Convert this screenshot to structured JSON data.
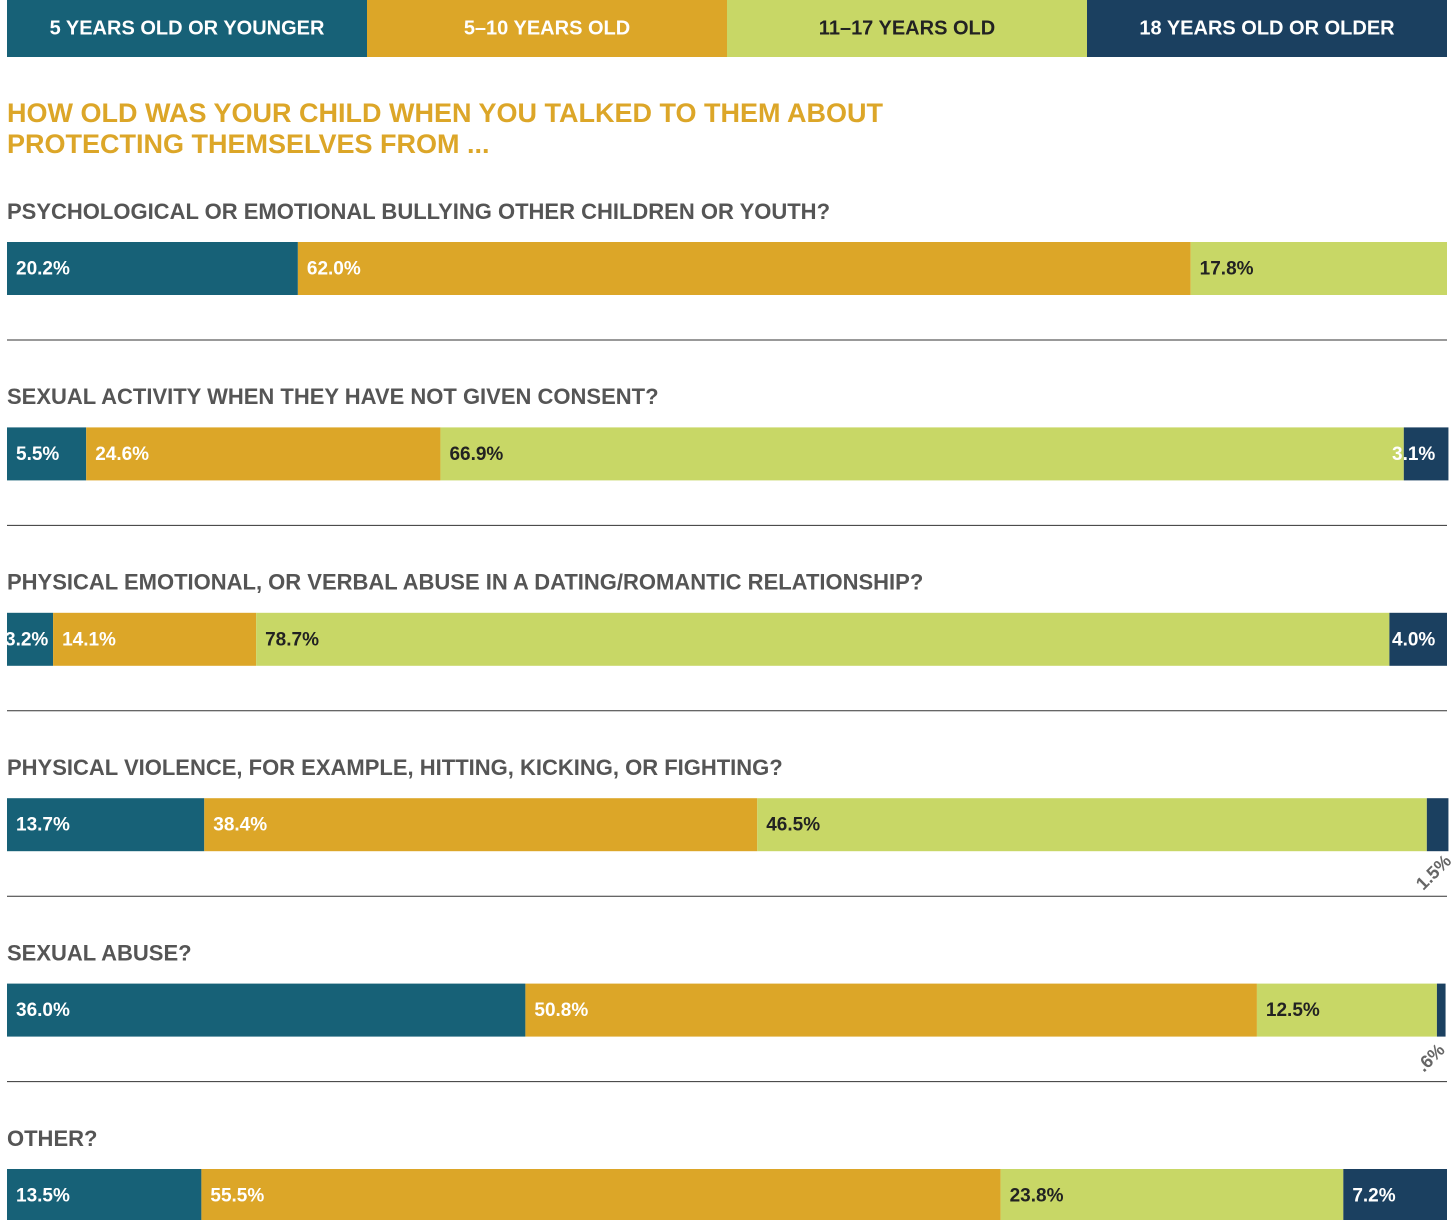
{
  "chart_data": {
    "type": "stacked-bar",
    "title": [
      "HOW OLD WAS YOUR CHILD WHEN YOU TALKED TO THEM ABOUT",
      "PROTECTING THEMSELVES FROM ..."
    ],
    "categories": [
      "PSYCHOLOGICAL OR EMOTIONAL BULLYING OTHER CHILDREN OR YOUTH?",
      "SEXUAL ACTIVITY WHEN THEY HAVE NOT GIVEN CONSENT?",
      "PHYSICAL EMOTIONAL, OR VERBAL ABUSE IN A DATING/ROMANTIC RELATIONSHIP?",
      "PHYSICAL VIOLENCE, FOR EXAMPLE, HITTING, KICKING, OR FIGHTING?",
      "SEXUAL ABUSE?",
      "OTHER?"
    ],
    "xlim": [
      0,
      100
    ],
    "series": [
      {
        "name": "5 YEARS OLD OR YOUNGER",
        "color": "#176177",
        "values": [
          20.2,
          5.5,
          3.2,
          13.7,
          36.0,
          13.5
        ],
        "value_labels": [
          "20.2%",
          "5.5%",
          "3.2%",
          "13.7%",
          "36.0%",
          "13.5%"
        ]
      },
      {
        "name": "5–10 YEARS OLD",
        "color": "#dca628",
        "values": [
          62.0,
          24.6,
          14.1,
          38.4,
          50.8,
          55.5
        ],
        "value_labels": [
          "62.0%",
          "24.6%",
          "14.1%",
          "38.4%",
          "50.8%",
          "55.5%"
        ]
      },
      {
        "name": "11–17 YEARS OLD",
        "color": "#c8d766",
        "values": [
          17.8,
          66.9,
          78.7,
          46.5,
          12.5,
          23.8
        ],
        "value_labels": [
          "17.8%",
          "66.9%",
          "78.7%",
          "46.5%",
          "12.5%",
          "23.8%"
        ]
      },
      {
        "name": "18 YEARS OLD OR OLDER",
        "color": "#1b4060",
        "values": [
          null,
          3.1,
          4.0,
          1.5,
          0.6,
          7.2
        ],
        "value_labels": [
          null,
          "3.1%",
          "4.0%",
          "1.5%",
          ".6%",
          "7.2%"
        ]
      }
    ]
  }
}
